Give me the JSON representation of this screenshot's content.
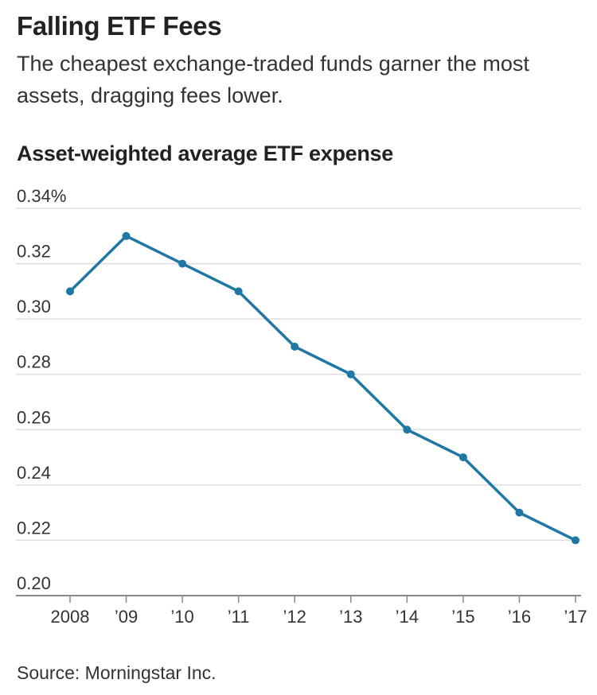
{
  "header": {
    "title": "Falling ETF Fees",
    "subtitle": "The cheapest exchange-traded funds garner the most assets, dragging fees lower."
  },
  "footer": {
    "source": "Source: Morningstar Inc."
  },
  "colors": {
    "line": "#1f77a4",
    "grid": "#dddddd",
    "axis": "#888888"
  },
  "chart_data": {
    "type": "line",
    "title": "Asset-weighted average ETF expense",
    "xlabel": "",
    "ylabel": "",
    "x": [
      2008,
      2009,
      2010,
      2011,
      2012,
      2013,
      2014,
      2015,
      2016,
      2017
    ],
    "x_tick_labels": [
      "2008",
      "’09",
      "’10",
      "’11",
      "’12",
      "’13",
      "’14",
      "’15",
      "’16",
      "’17"
    ],
    "series": [
      {
        "values": [
          0.31,
          0.33,
          0.32,
          0.31,
          0.29,
          0.28,
          0.26,
          0.25,
          0.23,
          0.22
        ]
      }
    ],
    "ylim": [
      0.2,
      0.34
    ],
    "y_ticks": [
      0.2,
      0.22,
      0.24,
      0.26,
      0.28,
      0.3,
      0.32,
      0.34
    ],
    "y_tick_labels": [
      "0.20",
      "0.22",
      "0.24",
      "0.26",
      "0.28",
      "0.30",
      "0.32",
      "0.34%"
    ],
    "grid": true,
    "unit": "%"
  }
}
